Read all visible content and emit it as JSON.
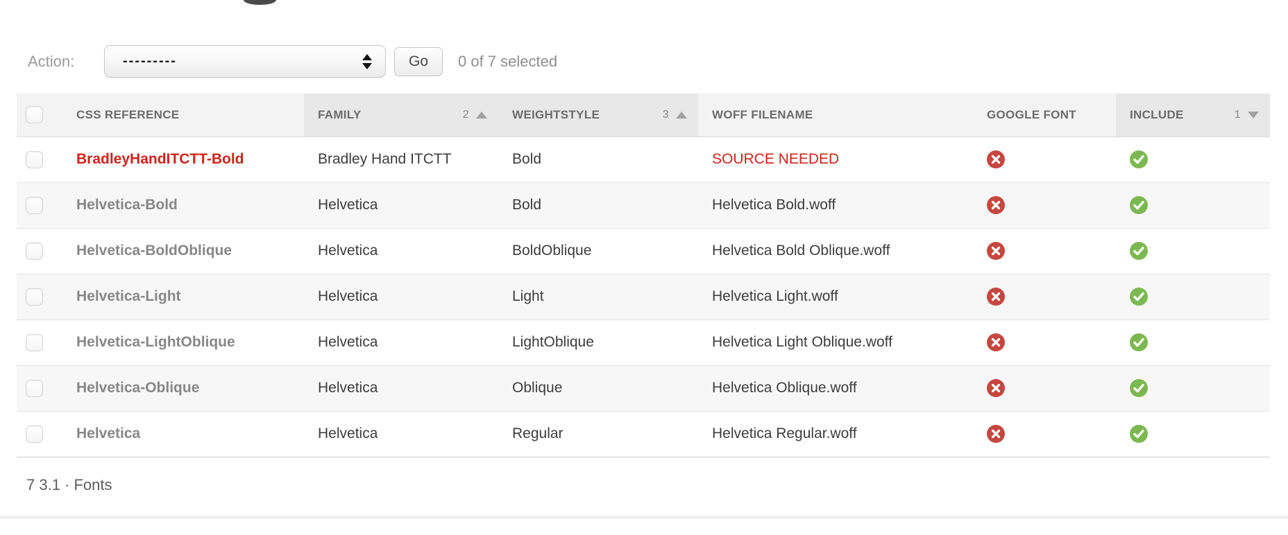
{
  "colors": {
    "alert_red": "#ce241b",
    "no_icon_red": "#c5473f",
    "yes_icon_green": "#7cb852",
    "sorted_header_bg": "#e8e8e8",
    "header_bg": "#f3f3f3"
  },
  "action_bar": {
    "label": "Action:",
    "select_value": "---------",
    "go_label": "Go",
    "selection_status": "0 of 7 selected"
  },
  "table": {
    "columns": {
      "css_reference": {
        "label": "CSS REFERENCE"
      },
      "family": {
        "label": "FAMILY",
        "sort_priority": "2",
        "sort_direction": "asc"
      },
      "weightstyle": {
        "label": "WEIGHTSTYLE",
        "sort_priority": "3",
        "sort_direction": "asc"
      },
      "woff_filename": {
        "label": "WOFF FILENAME"
      },
      "google_font": {
        "label": "GOOGLE FONT"
      },
      "include": {
        "label": "INCLUDE",
        "sort_priority": "1",
        "sort_direction": "desc"
      }
    },
    "rows": [
      {
        "css_reference": "BradleyHandITCTT-Bold",
        "family": "Bradley Hand ITCTT",
        "weightstyle": "Bold",
        "woff_filename": "SOURCE NEEDED",
        "missing_source": true,
        "google_font": false,
        "include": true
      },
      {
        "css_reference": "Helvetica-Bold",
        "family": "Helvetica",
        "weightstyle": "Bold",
        "woff_filename": "Helvetica Bold.woff",
        "missing_source": false,
        "google_font": false,
        "include": true
      },
      {
        "css_reference": "Helvetica-BoldOblique",
        "family": "Helvetica",
        "weightstyle": "BoldOblique",
        "woff_filename": "Helvetica Bold Oblique.woff",
        "missing_source": false,
        "google_font": false,
        "include": true
      },
      {
        "css_reference": "Helvetica-Light",
        "family": "Helvetica",
        "weightstyle": "Light",
        "woff_filename": "Helvetica Light.woff",
        "missing_source": false,
        "google_font": false,
        "include": true
      },
      {
        "css_reference": "Helvetica-LightOblique",
        "family": "Helvetica",
        "weightstyle": "LightOblique",
        "woff_filename": "Helvetica Light Oblique.woff",
        "missing_source": false,
        "google_font": false,
        "include": true
      },
      {
        "css_reference": "Helvetica-Oblique",
        "family": "Helvetica",
        "weightstyle": "Oblique",
        "woff_filename": "Helvetica Oblique.woff",
        "missing_source": false,
        "google_font": false,
        "include": true
      },
      {
        "css_reference": "Helvetica",
        "family": "Helvetica",
        "weightstyle": "Regular",
        "woff_filename": "Helvetica Regular.woff",
        "missing_source": false,
        "google_font": false,
        "include": true
      }
    ],
    "pagination": "7 3.1 · Fonts"
  }
}
